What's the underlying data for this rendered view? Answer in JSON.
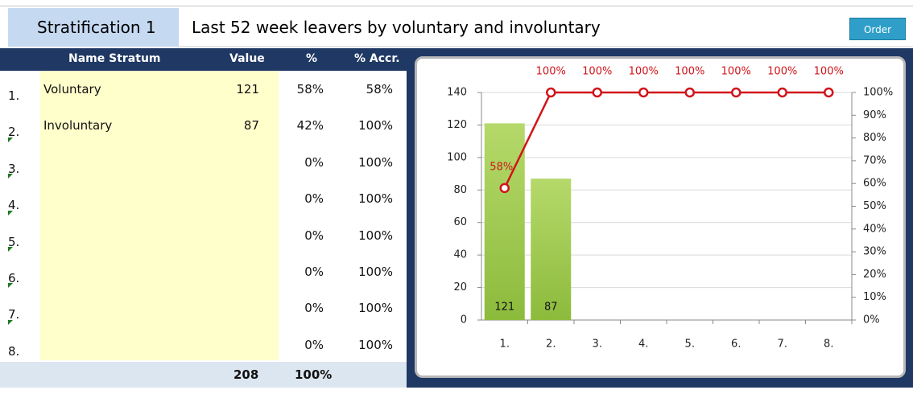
{
  "header": {
    "stratification": "Stratification 1",
    "title": "Last 52 week leavers by voluntary and involuntary",
    "button": "Order"
  },
  "table": {
    "columns": [
      "Name Stratum",
      "Value",
      "%",
      "% Accr."
    ],
    "rows": [
      [
        "1.",
        "Voluntary",
        "121",
        "58%",
        "58%"
      ],
      [
        "2.",
        "Involuntary",
        "87",
        "42%",
        "100%"
      ],
      [
        "3.",
        "",
        "",
        "0%",
        "100%"
      ],
      [
        "4.",
        "",
        "",
        "0%",
        "100%"
      ],
      [
        "5.",
        "",
        "",
        "0%",
        "100%"
      ],
      [
        "6.",
        "",
        "",
        "0%",
        "100%"
      ],
      [
        "7.",
        "",
        "",
        "0%",
        "100%"
      ],
      [
        "8.",
        "",
        "",
        "0%",
        "100%"
      ]
    ],
    "totals": [
      "208",
      "100%"
    ]
  },
  "chart_data": {
    "type": "pareto",
    "categories": [
      "1.",
      "2.",
      "3.",
      "4.",
      "5.",
      "6.",
      "7.",
      "8."
    ],
    "series": [
      {
        "color": "#8cbb3c",
        "values": [
          121,
          87,
          0,
          0,
          0,
          0,
          0,
          0
        ],
        "value_labels": [
          "121",
          "87",
          null,
          null,
          null,
          null,
          null,
          null
        ]
      },
      {
        "color": "#d0141a",
        "axis": "y2",
        "values": [
          58,
          100,
          100,
          100,
          100,
          100,
          100,
          100
        ],
        "value_labels": [
          "58%",
          "100%",
          "100%",
          "100%",
          "100%",
          "100%",
          "100%",
          "100%"
        ]
      }
    ],
    "ylim": [
      0,
      140
    ],
    "yticks": [
      0,
      20,
      40,
      60,
      80,
      100,
      120,
      140
    ],
    "y2lim": [
      0,
      100
    ],
    "y2ticks": [
      {
        "value": 0,
        "label": "0%"
      },
      {
        "value": 10,
        "label": "10%"
      },
      {
        "value": 20,
        "label": "20%"
      },
      {
        "value": 30,
        "label": "30%"
      },
      {
        "value": 40,
        "label": "40%"
      },
      {
        "value": 50,
        "label": "50%"
      },
      {
        "value": 60,
        "label": "60%"
      },
      {
        "value": 70,
        "label": "70%"
      },
      {
        "value": 80,
        "label": "80%"
      },
      {
        "value": 90,
        "label": "90%"
      },
      {
        "value": 100,
        "label": "100%"
      }
    ],
    "grid": true
  }
}
